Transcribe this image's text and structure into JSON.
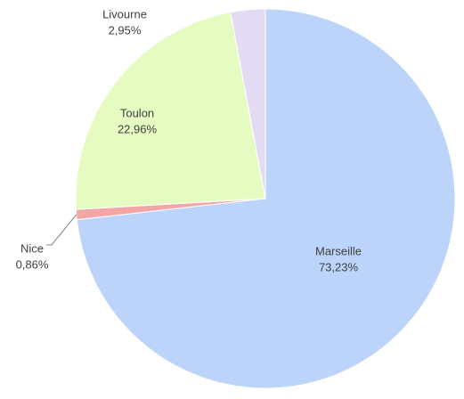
{
  "chart_data": {
    "type": "pie",
    "categories": [
      "Marseille",
      "Nice",
      "Toulon",
      "Livourne"
    ],
    "values": [
      73.23,
      0.86,
      22.96,
      2.95
    ],
    "value_labels": [
      "73,23%",
      "0,86%",
      "22,96%",
      "2,95%"
    ],
    "colors": [
      "#bcd3fa",
      "#f4a6a6",
      "#e6fbc2",
      "#e3dbf4"
    ]
  }
}
